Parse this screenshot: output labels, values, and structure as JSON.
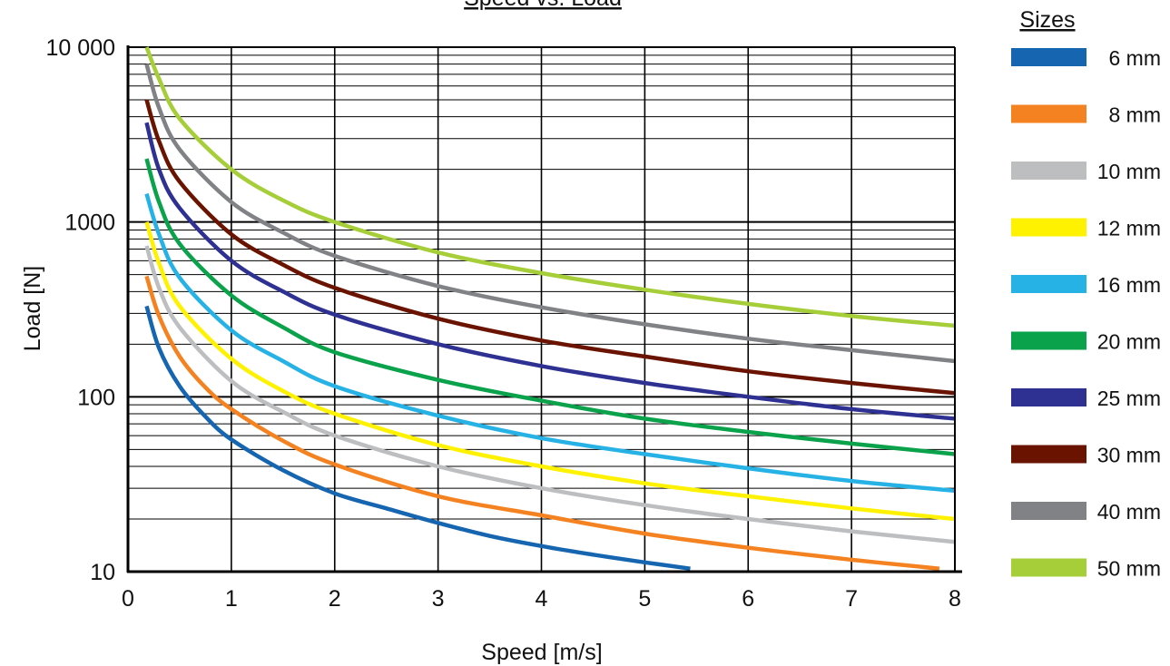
{
  "chart_data": {
    "type": "line",
    "title": "Speed vs. Load",
    "xlabel": "Speed [m/s]",
    "ylabel": "Load [N]",
    "x_scale": "linear",
    "y_scale": "log",
    "xlim": [
      0,
      8
    ],
    "ylim": [
      10,
      10000
    ],
    "x_ticks": [
      "0",
      "1",
      "2",
      "3",
      "4",
      "5",
      "6",
      "7",
      "8"
    ],
    "y_ticks": [
      "10",
      "100",
      "1000",
      "10 000"
    ],
    "grid": true,
    "legend_title": "Sizes",
    "legend_position": "right",
    "series": [
      {
        "name": "6 mm",
        "color": "#1565b0",
        "x": [
          0.18,
          0.3,
          0.5,
          0.75,
          1,
          1.5,
          2,
          2.5,
          3,
          3.5,
          4,
          4.5,
          5,
          5.44
        ],
        "y": [
          330,
          190,
          115,
          77,
          57,
          38,
          28,
          23,
          19,
          16,
          14,
          12.5,
          11.3,
          10.4
        ]
      },
      {
        "name": "8 mm",
        "color": "#f58220",
        "x": [
          0.18,
          0.3,
          0.5,
          0.75,
          1,
          1.5,
          2,
          3,
          4,
          5,
          6,
          7,
          7.85
        ],
        "y": [
          490,
          290,
          170,
          113,
          85,
          56,
          41,
          27,
          21,
          16.5,
          13.7,
          11.7,
          10.4
        ]
      },
      {
        "name": "10 mm",
        "color": "#bcbec0",
        "x": [
          0.18,
          0.3,
          0.5,
          1,
          1.5,
          2,
          3,
          4,
          5,
          6,
          7,
          8
        ],
        "y": [
          730,
          420,
          250,
          123,
          82,
          60,
          40,
          30,
          24,
          20,
          17,
          14.8
        ]
      },
      {
        "name": "12 mm",
        "color": "#fff200",
        "x": [
          0.18,
          0.3,
          0.5,
          1,
          1.5,
          2,
          3,
          4,
          5,
          6,
          7,
          8
        ],
        "y": [
          1000,
          580,
          330,
          165,
          108,
          80,
          53,
          40,
          32,
          27,
          23,
          20
        ]
      },
      {
        "name": "16 mm",
        "color": "#27b2e6",
        "x": [
          0.18,
          0.3,
          0.5,
          1,
          1.5,
          2,
          3,
          4,
          5,
          6,
          7,
          8
        ],
        "y": [
          1450,
          850,
          480,
          240,
          160,
          115,
          78,
          58,
          47,
          39,
          33,
          29
        ]
      },
      {
        "name": "20 mm",
        "color": "#0aa24b",
        "x": [
          0.18,
          0.3,
          0.5,
          1,
          1.5,
          2,
          3,
          4,
          5,
          6,
          7,
          8
        ],
        "y": [
          2300,
          1300,
          750,
          380,
          250,
          180,
          125,
          95,
          75,
          63,
          54,
          47
        ]
      },
      {
        "name": "25 mm",
        "color": "#2e3192",
        "x": [
          0.18,
          0.3,
          0.5,
          1,
          1.5,
          2,
          3,
          4,
          5,
          6,
          7,
          8
        ],
        "y": [
          3700,
          2000,
          1200,
          600,
          400,
          295,
          200,
          150,
          120,
          100,
          85,
          75
        ]
      },
      {
        "name": "30 mm",
        "color": "#6a1400",
        "x": [
          0.18,
          0.3,
          0.5,
          1,
          1.5,
          2,
          3,
          4,
          5,
          6,
          7,
          8
        ],
        "y": [
          5000,
          2900,
          1700,
          850,
          570,
          420,
          280,
          210,
          170,
          140,
          120,
          105
        ]
      },
      {
        "name": "40 mm",
        "color": "#808285",
        "x": [
          0.18,
          0.3,
          0.5,
          1,
          1.5,
          2,
          3,
          4,
          5,
          6,
          7,
          8
        ],
        "y": [
          8000,
          4500,
          2600,
          1300,
          870,
          640,
          430,
          325,
          260,
          215,
          185,
          160
        ]
      },
      {
        "name": "50 mm",
        "color": "#a6ce39",
        "x": [
          0.18,
          0.3,
          0.5,
          1,
          1.5,
          2,
          3,
          4,
          5,
          6,
          7,
          8
        ],
        "y": [
          10000,
          6600,
          3900,
          2000,
          1330,
          1000,
          670,
          510,
          410,
          340,
          290,
          255
        ]
      }
    ]
  }
}
